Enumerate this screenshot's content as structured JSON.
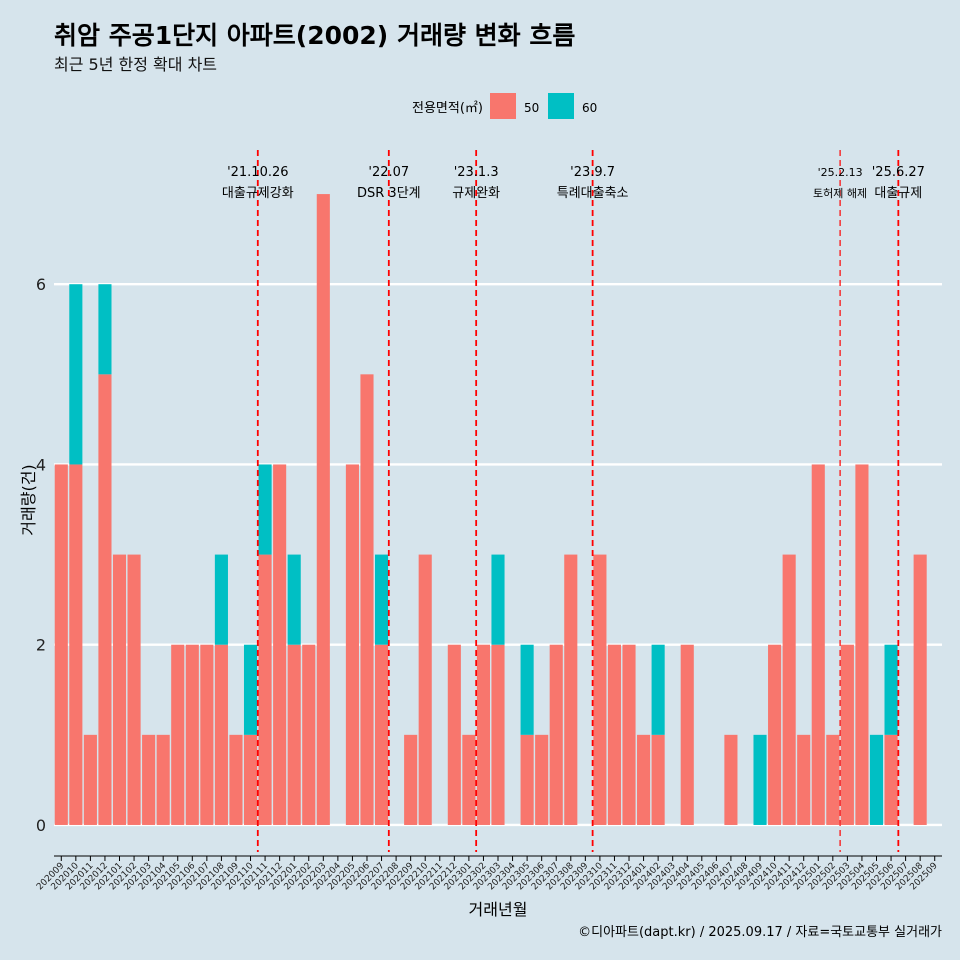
{
  "colors": {
    "background": "#d6e4ec",
    "series_50": "#f8766d",
    "series_60": "#00bfc4",
    "gridline": "#ffffff",
    "event_line": "#ff0000",
    "text": "#000000"
  },
  "chart_data": {
    "type": "bar",
    "stacked": true,
    "title": "취암 주공1단지 아파트(2002) 거래량 변화 흐름",
    "subtitle": "최근 5년 한정 확대 차트",
    "xlabel": "거래년월",
    "ylabel": "거래량(건)",
    "ylim": [
      -0.3,
      7.6
    ],
    "yticks": [
      0,
      2,
      4,
      6
    ],
    "legend": {
      "title": "전용면적(㎡)",
      "position": "top",
      "items": [
        {
          "label": "50",
          "color": "#f8766d"
        },
        {
          "label": "60",
          "color": "#00bfc4"
        }
      ]
    },
    "categories": [
      "202009",
      "202010",
      "202011",
      "202012",
      "202101",
      "202102",
      "202103",
      "202104",
      "202105",
      "202106",
      "202107",
      "202108",
      "202109",
      "202110",
      "202111",
      "202112",
      "202201",
      "202202",
      "202203",
      "202204",
      "202205",
      "202206",
      "202207",
      "202208",
      "202209",
      "202210",
      "202211",
      "202212",
      "202301",
      "202302",
      "202303",
      "202304",
      "202305",
      "202306",
      "202307",
      "202308",
      "202309",
      "202310",
      "202311",
      "202312",
      "202401",
      "202402",
      "202403",
      "202404",
      "202405",
      "202406",
      "202407",
      "202408",
      "202409",
      "202410",
      "202411",
      "202412",
      "202501",
      "202502",
      "202503",
      "202504",
      "202505",
      "202506",
      "202507",
      "202508",
      "202509"
    ],
    "series": [
      {
        "name": "50",
        "values": [
          4,
          4,
          1,
          5,
          3,
          3,
          1,
          1,
          2,
          2,
          2,
          2,
          1,
          1,
          3,
          4,
          2,
          2,
          7,
          0,
          4,
          5,
          2,
          0,
          1,
          3,
          0,
          2,
          1,
          2,
          2,
          0,
          1,
          1,
          2,
          3,
          0,
          3,
          2,
          2,
          1,
          1,
          0,
          2,
          0,
          0,
          1,
          0,
          0,
          2,
          3,
          1,
          4,
          1,
          2,
          4,
          0,
          1,
          0,
          3,
          0
        ]
      },
      {
        "name": "60",
        "values": [
          0,
          2,
          0,
          1,
          0,
          0,
          0,
          0,
          0,
          0,
          0,
          1,
          0,
          1,
          1,
          0,
          1,
          0,
          0,
          0,
          0,
          0,
          1,
          0,
          0,
          0,
          0,
          0,
          0,
          0,
          1,
          0,
          1,
          0,
          0,
          0,
          0,
          0,
          0,
          0,
          0,
          1,
          0,
          0,
          0,
          0,
          0,
          0,
          1,
          0,
          0,
          0,
          0,
          0,
          0,
          0,
          1,
          1,
          0,
          0,
          0
        ]
      }
    ],
    "events": [
      {
        "date": "'21.10.26",
        "label": "대출규제강화",
        "x_index": 13.5
      },
      {
        "date": "'22.07",
        "label": "DSR 3단계",
        "x_index": 22.5
      },
      {
        "date": "'23.1.3",
        "label": "규제완화",
        "x_index": 28.5
      },
      {
        "date": "'23.9.7",
        "label": "특례대출축소",
        "x_index": 36.5
      },
      {
        "date": "'25.2.13",
        "label": "토허제 해제",
        "x_index": 53.5
      },
      {
        "date": "'25.6.27",
        "label": "대출규제",
        "x_index": 57.5
      }
    ]
  },
  "footer": {
    "credit": "©디아파트(dapt.kr) / 2025.09.17 / 자료=국토교통부 실거래가"
  }
}
